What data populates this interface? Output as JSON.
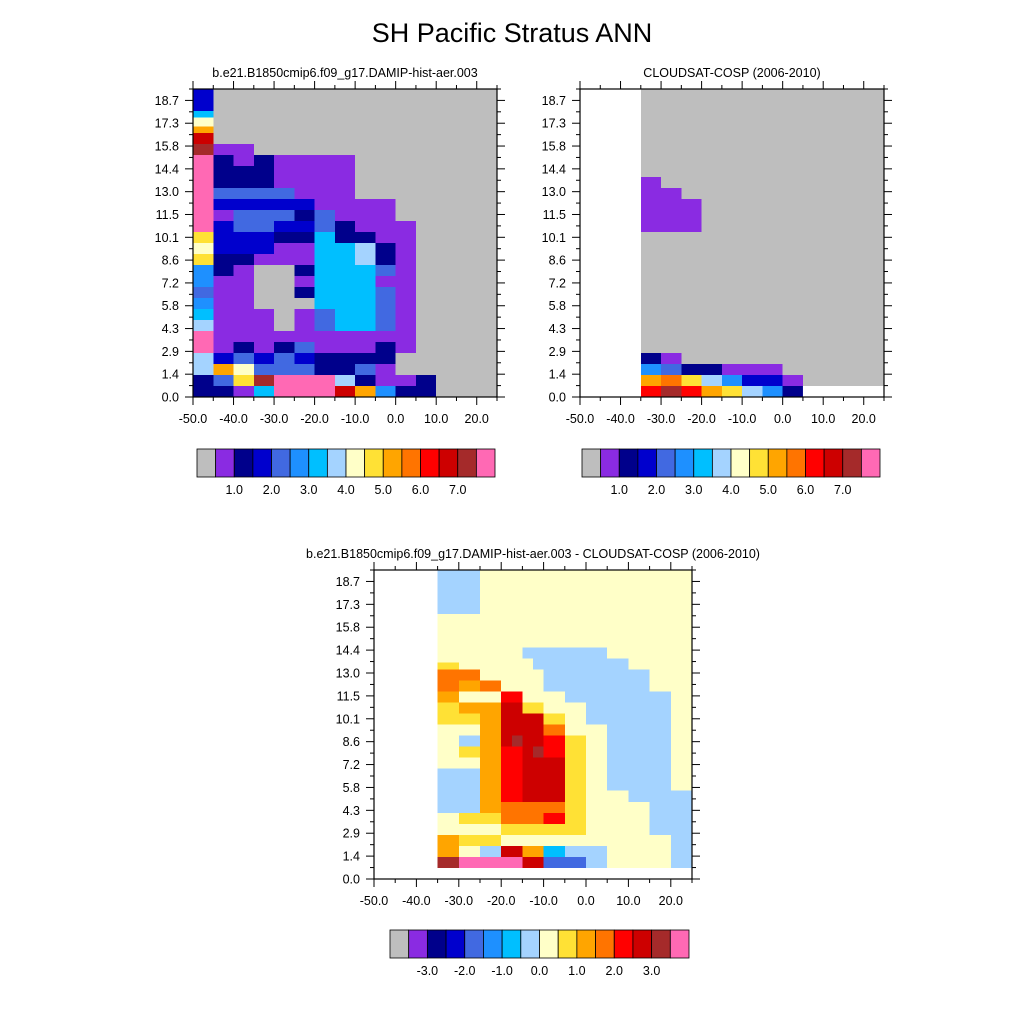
{
  "page_title": "SH Pacific Stratus ANN",
  "palette": [
    "#bebebe",
    "#8a2be2",
    "#00008b",
    "#0000cd",
    "#4169e1",
    "#1e90ff",
    "#00bfff",
    "#a4d3ff",
    "#ffffc8",
    "#ffe135",
    "#ffa500",
    "#ff7400",
    "#ff0000",
    "#cd0000",
    "#a52a2a",
    "#ff69b4"
  ],
  "chart_data": [
    {
      "type": "heatmap",
      "title": "b.e21.B1850cmip6.f09_g17.DAMIP-hist-aer.003",
      "x_ticks": [
        "-50.0",
        "-40.0",
        "-30.0",
        "-20.0",
        "-10.0",
        "0.0",
        "10.0",
        "20.0"
      ],
      "y_ticks": [
        "0.0",
        "1.4",
        "2.9",
        "4.3",
        "5.8",
        "7.2",
        "8.6",
        "10.1",
        "11.5",
        "13.0",
        "14.4",
        "15.8",
        "17.3",
        "18.7"
      ],
      "colorbar_labels": [
        "1.0",
        "2.0",
        "3.0",
        "4.0",
        "5.0",
        "6.0",
        "7.0"
      ],
      "rows": [
        "zfjijfsjsssuffgg",
        "zllijjjjsjsaeggg",
        "zhlimssuhijjjfgg",
        "zsdsghmfsdmyzfgg",
        "zssaaaaaggjpgggg",
        "zhhhhhhhhljjggggg",
        "zecdchpphhpqqggg",
        "zgdgifbbdgssssgg",
        "zfhjjjhhbbigsgggg",
        "zeaaaaaaaakkeggg",
        "zghhaabaaaggfggg",
        "gaahaaaafggfggeg",
        "gaaaaadaaaaggeeg",
        "gpaaadaaaaagghgg",
        "gpaaadaaaaagghgg",
        "gpaaaaddaafhggggg",
        "gpaaaadaafghgggggg"
      ],
      "note": ""
    },
    {
      "type": "heatmap",
      "title": "CLOUDSAT-COSP (2006-2010)",
      "x_ticks": [
        "-50.0",
        "-40.0",
        "-30.0",
        "-20.0",
        "-10.0",
        "0.0",
        "10.0",
        "20.0"
      ],
      "y_ticks": [
        "0.0",
        "1.4",
        "2.9",
        "4.3",
        "5.8",
        "7.2",
        "8.6",
        "10.1",
        "11.5",
        "13.0",
        "14.4",
        "15.8",
        "17.3",
        "18.7"
      ],
      "colorbar_labels": [
        "1.0",
        "2.0",
        "3.0",
        "4.0",
        "5.0",
        "6.0",
        "7.0"
      ],
      "rows": []
    },
    {
      "type": "heatmap",
      "title": "b.e21.B1850cmip6.f09_g17.DAMIP-hist-aer.003 - CLOUDSAT-COSP (2006-2010)",
      "x_ticks": [
        "-50.0",
        "-40.0",
        "-30.0",
        "-20.0",
        "-10.0",
        "0.0",
        "10.0",
        "20.0"
      ],
      "y_ticks": [
        "0.0",
        "1.4",
        "2.9",
        "4.3",
        "5.8",
        "7.2",
        "8.6",
        "10.1",
        "11.5",
        "13.0",
        "14.4",
        "15.8",
        "17.3",
        "18.7"
      ],
      "colorbar_labels": [
        "-3.0",
        "-2.0",
        "-1.0",
        "0.0",
        "1.0",
        "2.0",
        "3.0"
      ],
      "rows": []
    }
  ]
}
